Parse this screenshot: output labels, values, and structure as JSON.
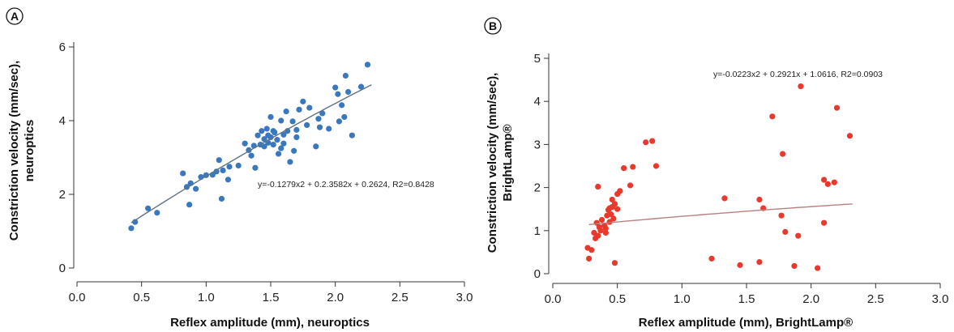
{
  "chart_data": [
    {
      "type": "scatter",
      "panel": "A",
      "xlabel": "Reflex amplitude (mm), neuroptics",
      "ylabel": [
        "Constriction velocity (mm/sec),",
        "neuroptics"
      ],
      "xlim": [
        0,
        3
      ],
      "ylim": [
        0,
        6
      ],
      "xticks": [
        "0.0",
        "0.5",
        "1.0",
        "1.5",
        "2.0",
        "2.5",
        "3.0"
      ],
      "yticks": [
        "0",
        "2",
        "4",
        "6"
      ],
      "equation": "y=-0.1279x2 + 0.2.3582x + 0.2624, R2=0.8428",
      "trend": {
        "a": -0.1279,
        "b": 2.3582,
        "c": 0.2624,
        "x_range": [
          0.42,
          2.28
        ]
      },
      "color": "#3a78bd",
      "points": [
        [
          0.42,
          1.08
        ],
        [
          0.45,
          1.25
        ],
        [
          0.55,
          1.62
        ],
        [
          0.62,
          1.5
        ],
        [
          0.82,
          2.57
        ],
        [
          0.85,
          2.2
        ],
        [
          0.87,
          1.72
        ],
        [
          0.88,
          2.3
        ],
        [
          0.92,
          2.15
        ],
        [
          0.96,
          2.47
        ],
        [
          1.0,
          2.52
        ],
        [
          1.05,
          2.53
        ],
        [
          1.08,
          2.62
        ],
        [
          1.1,
          2.93
        ],
        [
          1.12,
          1.88
        ],
        [
          1.13,
          2.65
        ],
        [
          1.17,
          2.4
        ],
        [
          1.18,
          2.75
        ],
        [
          1.25,
          2.78
        ],
        [
          1.3,
          3.38
        ],
        [
          1.33,
          3.2
        ],
        [
          1.35,
          3.05
        ],
        [
          1.37,
          3.32
        ],
        [
          1.38,
          2.72
        ],
        [
          1.4,
          3.6
        ],
        [
          1.42,
          3.35
        ],
        [
          1.43,
          3.72
        ],
        [
          1.45,
          3.3
        ],
        [
          1.45,
          3.5
        ],
        [
          1.47,
          3.78
        ],
        [
          1.48,
          3.4
        ],
        [
          1.48,
          3.6
        ],
        [
          1.5,
          4.1
        ],
        [
          1.5,
          3.55
        ],
        [
          1.52,
          3.35
        ],
        [
          1.53,
          3.68
        ],
        [
          1.55,
          3.48
        ],
        [
          1.56,
          3.1
        ],
        [
          1.58,
          3.25
        ],
        [
          1.6,
          3.38
        ],
        [
          1.6,
          3.62
        ],
        [
          1.62,
          4.25
        ],
        [
          1.63,
          3.72
        ],
        [
          1.65,
          2.88
        ],
        [
          1.67,
          3.98
        ],
        [
          1.68,
          3.18
        ],
        [
          1.7,
          3.55
        ],
        [
          1.7,
          3.75
        ],
        [
          1.72,
          4.3
        ],
        [
          1.75,
          4.52
        ],
        [
          1.78,
          3.88
        ],
        [
          1.8,
          4.35
        ],
        [
          1.85,
          3.3
        ],
        [
          1.87,
          4.05
        ],
        [
          1.88,
          3.82
        ],
        [
          1.9,
          4.2
        ],
        [
          1.95,
          3.78
        ],
        [
          2.0,
          4.9
        ],
        [
          2.02,
          4.72
        ],
        [
          2.03,
          3.98
        ],
        [
          2.05,
          4.42
        ],
        [
          2.07,
          4.1
        ],
        [
          2.08,
          5.22
        ],
        [
          2.1,
          4.78
        ],
        [
          2.13,
          3.6
        ],
        [
          2.2,
          4.92
        ],
        [
          2.25,
          5.52
        ],
        [
          1.58,
          4.0
        ],
        [
          1.52,
          3.72
        ]
      ]
    },
    {
      "type": "scatter",
      "panel": "B",
      "xlabel": "Reflex amplitude (mm), BrightLamp®",
      "ylabel": [
        "Constriction velocity (mm/sec),",
        "BrightLamp®"
      ],
      "xlim": [
        0,
        3
      ],
      "ylim": [
        0,
        5
      ],
      "xticks": [
        "0.0",
        "0.5",
        "1.0",
        "1.5",
        "2.0",
        "2.5",
        "3.0"
      ],
      "yticks": [
        "0",
        "1",
        "2",
        "3",
        "4",
        "5"
      ],
      "equation": "y=-0.0223x2 + 0.2921x + 1.0616, R2=0.0903",
      "trend": {
        "a": -0.0223,
        "b": 0.2921,
        "c": 1.0616,
        "x_range": [
          0.28,
          2.32
        ]
      },
      "color": "#e8392c",
      "points": [
        [
          0.27,
          0.6
        ],
        [
          0.28,
          0.35
        ],
        [
          0.3,
          0.55
        ],
        [
          0.32,
          0.95
        ],
        [
          0.33,
          0.82
        ],
        [
          0.34,
          1.18
        ],
        [
          0.35,
          0.88
        ],
        [
          0.35,
          2.02
        ],
        [
          0.37,
          1.0
        ],
        [
          0.38,
          1.25
        ],
        [
          0.4,
          1.12
        ],
        [
          0.41,
          1.05
        ],
        [
          0.42,
          1.35
        ],
        [
          0.43,
          1.48
        ],
        [
          0.44,
          1.2
        ],
        [
          0.45,
          1.38
        ],
        [
          0.46,
          1.55
        ],
        [
          0.47,
          1.28
        ],
        [
          0.48,
          1.62
        ],
        [
          0.48,
          0.25
        ],
        [
          0.5,
          1.85
        ],
        [
          0.52,
          1.92
        ],
        [
          0.55,
          2.45
        ],
        [
          0.6,
          2.05
        ],
        [
          0.62,
          2.48
        ],
        [
          0.72,
          3.05
        ],
        [
          0.77,
          3.08
        ],
        [
          0.8,
          2.5
        ],
        [
          0.44,
          1.52
        ],
        [
          0.5,
          1.5
        ],
        [
          0.36,
          1.08
        ],
        [
          0.41,
          0.95
        ],
        [
          0.46,
          1.72
        ],
        [
          1.23,
          0.35
        ],
        [
          1.33,
          1.75
        ],
        [
          1.45,
          0.2
        ],
        [
          1.6,
          0.27
        ],
        [
          1.6,
          1.72
        ],
        [
          1.63,
          1.52
        ],
        [
          1.7,
          3.65
        ],
        [
          1.77,
          1.35
        ],
        [
          1.78,
          2.78
        ],
        [
          1.8,
          0.97
        ],
        [
          1.87,
          0.18
        ],
        [
          1.9,
          0.88
        ],
        [
          1.92,
          4.35
        ],
        [
          2.05,
          0.13
        ],
        [
          2.1,
          1.18
        ],
        [
          2.1,
          2.18
        ],
        [
          2.13,
          2.08
        ],
        [
          2.18,
          2.12
        ],
        [
          2.2,
          3.85
        ],
        [
          2.3,
          3.2
        ]
      ]
    }
  ],
  "panels": {
    "a_label": "A",
    "b_label": "B"
  }
}
